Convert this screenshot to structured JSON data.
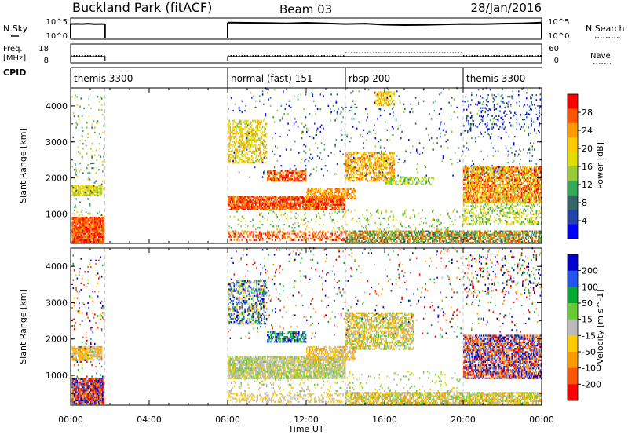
{
  "header": {
    "station": "Buckland Park (fitACF)",
    "beam": "Beam 03",
    "date": "28/Jan/2016"
  },
  "chart_data": [
    {
      "type": "line",
      "name": "noise-panel",
      "left_label": "N.Sky",
      "right_label": "N.Search",
      "left_ticks": [
        "10^5",
        "10^0"
      ],
      "right_ticks": [
        "10^5",
        "10^0"
      ],
      "x_range_hours": [
        0,
        24
      ],
      "segments": [
        {
          "x": [
            0.0,
            0.3,
            0.6,
            0.9,
            1.2,
            1.5,
            1.75
          ],
          "y": [
            4.0,
            4.05,
            4.0,
            4.1,
            3.95,
            4.0,
            4.0
          ]
        },
        {
          "x": [
            8.0,
            9.0,
            10.0,
            11.0,
            12.0,
            13.0,
            14.0,
            15.0,
            16.0,
            17.0,
            18.0,
            19.0,
            20.0,
            21.0,
            22.0,
            23.0,
            24.0
          ],
          "y": [
            4.4,
            4.35,
            4.3,
            4.2,
            4.35,
            4.2,
            4.0,
            4.1,
            3.8,
            3.7,
            3.75,
            3.9,
            4.0,
            3.95,
            4.1,
            4.2,
            4.4
          ]
        }
      ]
    },
    {
      "type": "line",
      "name": "frequency-panel",
      "left_label": "Freq. [MHz]",
      "right_label": "Nave",
      "left_ticks": [
        "18",
        "8"
      ],
      "right_ticks": [
        "60",
        "0"
      ],
      "x_range_hours": [
        0,
        24
      ],
      "segments": [
        {
          "x": [
            0,
            1.75
          ],
          "y": [
            12,
            12
          ]
        },
        {
          "x": [
            8,
            14
          ],
          "y": [
            12,
            12
          ]
        },
        {
          "x": [
            14,
            20
          ],
          "y": [
            14,
            14
          ]
        },
        {
          "x": [
            20,
            24
          ],
          "y": [
            12,
            12
          ]
        }
      ]
    },
    {
      "type": "table",
      "name": "cpid-panel",
      "label": "CPID",
      "modes": [
        {
          "start": 0,
          "label": "themis 3300"
        },
        {
          "start": 8,
          "label": "normal (fast) 151"
        },
        {
          "start": 14,
          "label": "rbsp 200"
        },
        {
          "start": 20,
          "label": "themis 3300"
        }
      ]
    },
    {
      "type": "heatmap",
      "name": "power-panel",
      "ylabel": "Slant Range [km]",
      "ylim": [
        180,
        4500
      ],
      "yticks": [
        1000,
        2000,
        3000,
        4000
      ],
      "colorbar_label": "Power [dB]",
      "colorbar_ticks": [
        "28",
        "24",
        "20",
        "16",
        "12",
        "8",
        "4"
      ],
      "colors": [
        "#ff0000",
        "#ff5500",
        "#ff9900",
        "#ffcc00",
        "#e0e000",
        "#99cc33",
        "#33aa55",
        "#336666",
        "#2244aa",
        "#0000ff"
      ]
    },
    {
      "type": "heatmap",
      "name": "velocity-panel",
      "ylabel": "Slant Range [km]",
      "ylim": [
        180,
        4500
      ],
      "yticks": [
        1000,
        2000,
        3000,
        4000
      ],
      "xlabel": "Time UT",
      "xticks": [
        "00:00",
        "04:00",
        "08:00",
        "12:00",
        "16:00",
        "20:00",
        "00:00"
      ],
      "colorbar_label": "Velocity [m s^-1]",
      "colorbar_ticks": [
        "200",
        "100",
        "50",
        "15",
        "-15",
        "-50",
        "-100",
        "-200"
      ],
      "colors": [
        "#0000cc",
        "#2255ee",
        "#00aa33",
        "#66cc33",
        "#bbbbbb",
        "#ffcc00",
        "#ff9900",
        "#ff5500",
        "#ff0000"
      ]
    }
  ],
  "blobs": {
    "power": [
      {
        "t0": 0.05,
        "t1": 1.7,
        "r0": 200,
        "r1": 900,
        "c": [
          0,
          1,
          2
        ],
        "d": 0.9
      },
      {
        "t0": 0.05,
        "t1": 1.6,
        "r0": 1500,
        "r1": 1800,
        "c": [
          3,
          4,
          5
        ],
        "d": 0.8
      },
      {
        "t0": 0.05,
        "t1": 1.7,
        "r0": 900,
        "r1": 4300,
        "c": [
          3,
          5,
          6,
          7
        ],
        "d": 0.06
      },
      {
        "t0": 8.0,
        "t1": 14.0,
        "r0": 1100,
        "r1": 1500,
        "c": [
          0,
          1,
          2
        ],
        "d": 0.8
      },
      {
        "t0": 8.0,
        "t1": 10.0,
        "r0": 2400,
        "r1": 3600,
        "c": [
          3,
          4,
          5,
          2
        ],
        "d": 0.45
      },
      {
        "t0": 10.0,
        "t1": 12.0,
        "r0": 1900,
        "r1": 2200,
        "c": [
          0,
          1,
          2
        ],
        "d": 0.7
      },
      {
        "t0": 12.0,
        "t1": 14.5,
        "r0": 1400,
        "r1": 1700,
        "c": [
          1,
          2,
          3
        ],
        "d": 0.6
      },
      {
        "t0": 14.0,
        "t1": 16.5,
        "r0": 1900,
        "r1": 2700,
        "c": [
          1,
          2,
          3,
          4
        ],
        "d": 0.55
      },
      {
        "t0": 16.0,
        "t1": 18.5,
        "r0": 1800,
        "r1": 2000,
        "c": [
          4,
          5,
          6
        ],
        "d": 0.5
      },
      {
        "t0": 8.0,
        "t1": 14.0,
        "r0": 250,
        "r1": 480,
        "c": [
          0,
          1,
          2
        ],
        "d": 0.35
      },
      {
        "t0": 14.0,
        "t1": 24.0,
        "r0": 180,
        "r1": 500,
        "c": [
          1,
          2,
          5,
          6,
          7
        ],
        "d": 0.7
      },
      {
        "t0": 20.0,
        "t1": 24.0,
        "r0": 1300,
        "r1": 2300,
        "c": [
          0,
          1,
          2,
          3,
          4,
          5
        ],
        "d": 0.7
      },
      {
        "t0": 20.0,
        "t1": 24.0,
        "r0": 700,
        "r1": 1300,
        "c": [
          3,
          4,
          5,
          6
        ],
        "d": 0.35
      },
      {
        "t0": 20.0,
        "t1": 24.0,
        "r0": 3200,
        "r1": 4300,
        "c": [
          7,
          8,
          9
        ],
        "d": 0.08
      },
      {
        "t0": 8.0,
        "t1": 20.0,
        "r0": 500,
        "r1": 1100,
        "c": [
          3,
          5,
          6
        ],
        "d": 0.08
      },
      {
        "t0": 15.5,
        "t1": 16.5,
        "r0": 4000,
        "r1": 4400,
        "c": [
          2,
          3,
          4
        ],
        "d": 0.5
      },
      {
        "t0": 8.0,
        "t1": 24.0,
        "r0": 2000,
        "r1": 4500,
        "c": [
          5,
          6,
          7,
          8,
          9
        ],
        "d": 0.03
      }
    ],
    "velocity": [
      {
        "t0": 0.05,
        "t1": 1.7,
        "r0": 200,
        "r1": 900,
        "c": [
          0,
          1,
          6,
          7,
          8
        ],
        "d": 0.9
      },
      {
        "t0": 0.05,
        "t1": 1.6,
        "r0": 1400,
        "r1": 1800,
        "c": [
          4,
          5,
          6
        ],
        "d": 0.8
      },
      {
        "t0": 0.05,
        "t1": 1.7,
        "r0": 900,
        "r1": 4300,
        "c": [
          0,
          2,
          5,
          7,
          8
        ],
        "d": 0.06
      },
      {
        "t0": 8.0,
        "t1": 14.0,
        "r0": 900,
        "r1": 1500,
        "c": [
          4,
          4,
          5,
          3
        ],
        "d": 0.8
      },
      {
        "t0": 8.0,
        "t1": 10.0,
        "r0": 2400,
        "r1": 3600,
        "c": [
          0,
          1,
          2,
          4,
          5
        ],
        "d": 0.45
      },
      {
        "t0": 10.0,
        "t1": 12.0,
        "r0": 1900,
        "r1": 2200,
        "c": [
          0,
          1,
          2,
          3
        ],
        "d": 0.6
      },
      {
        "t0": 12.0,
        "t1": 14.5,
        "r0": 1400,
        "r1": 1800,
        "c": [
          4,
          5,
          6
        ],
        "d": 0.6
      },
      {
        "t0": 14.0,
        "t1": 17.5,
        "r0": 1700,
        "r1": 2700,
        "c": [
          4,
          5,
          6,
          3
        ],
        "d": 0.55
      },
      {
        "t0": 8.0,
        "t1": 14.0,
        "r0": 250,
        "r1": 480,
        "c": [
          4,
          5
        ],
        "d": 0.35
      },
      {
        "t0": 14.0,
        "t1": 24.0,
        "r0": 180,
        "r1": 500,
        "c": [
          4,
          5,
          6,
          3
        ],
        "d": 0.7
      },
      {
        "t0": 20.0,
        "t1": 24.0,
        "r0": 900,
        "r1": 2100,
        "c": [
          0,
          1,
          6,
          7,
          8,
          4
        ],
        "d": 0.75
      },
      {
        "t0": 20.0,
        "t1": 24.0,
        "r0": 3200,
        "r1": 4300,
        "c": [
          0,
          5,
          8,
          2
        ],
        "d": 0.08
      },
      {
        "t0": 8.0,
        "t1": 20.0,
        "r0": 500,
        "r1": 1100,
        "c": [
          3,
          4,
          5
        ],
        "d": 0.08
      },
      {
        "t0": 8.0,
        "t1": 24.0,
        "r0": 2000,
        "r1": 4500,
        "c": [
          0,
          2,
          4,
          6,
          8
        ],
        "d": 0.03
      }
    ]
  }
}
